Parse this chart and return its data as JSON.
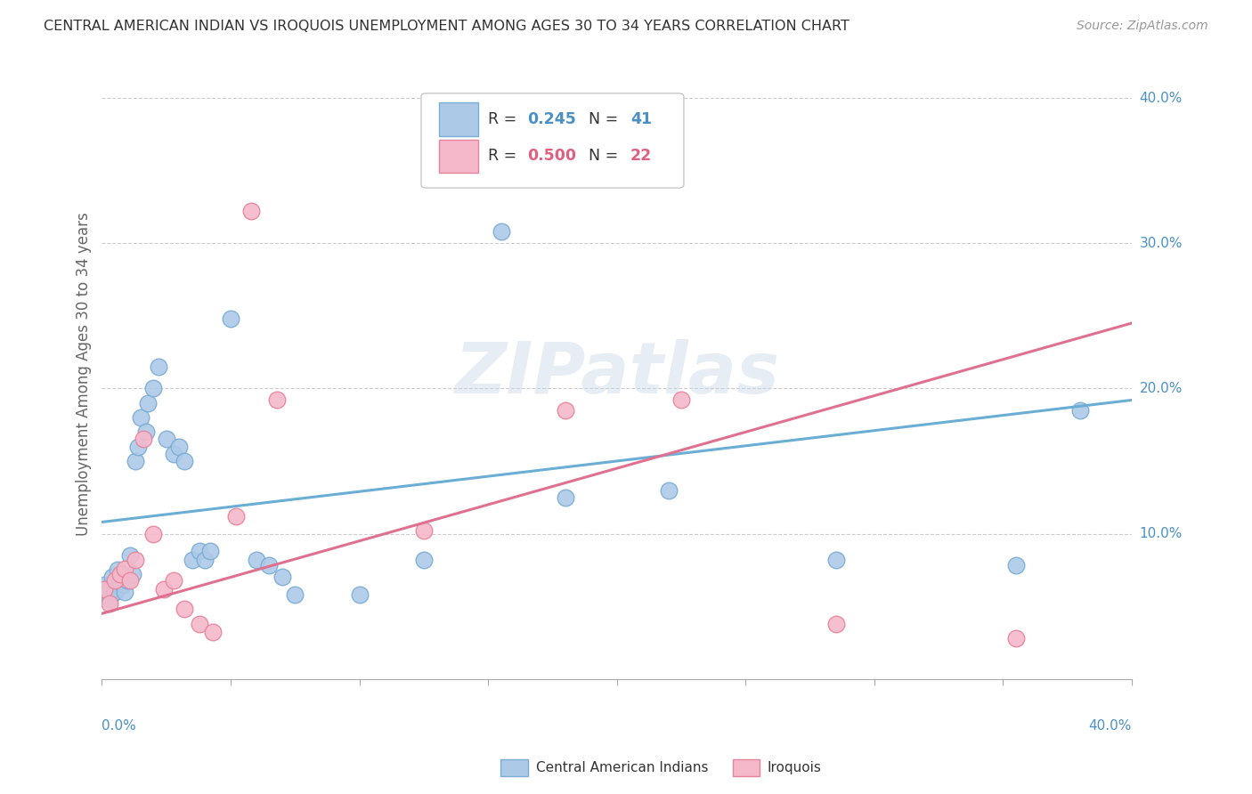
{
  "title": "CENTRAL AMERICAN INDIAN VS IROQUOIS UNEMPLOYMENT AMONG AGES 30 TO 34 YEARS CORRELATION CHART",
  "source": "Source: ZipAtlas.com",
  "ylabel": "Unemployment Among Ages 30 to 34 years",
  "legend_label1": "Central American Indians",
  "legend_label2": "Iroquois",
  "r1": "0.245",
  "n1": "41",
  "r2": "0.500",
  "n2": "22",
  "watermark": "ZIPatlas",
  "color_blue": "#adc9e8",
  "color_pink": "#f5b8cb",
  "color_blue_dark": "#7aadd4",
  "color_pink_dark": "#e8849a",
  "color_blue_text": "#4a90c4",
  "color_pink_text": "#e06080",
  "color_line_blue": "#6aaed6",
  "color_line_pink": "#e07090",
  "background": "#ffffff",
  "xlim": [
    0.0,
    0.4
  ],
  "ylim": [
    0.0,
    0.42
  ],
  "ytick_values": [
    0.1,
    0.2,
    0.3,
    0.4
  ],
  "ytick_labels": [
    "10.0%",
    "20.0%",
    "30.0%",
    "40.0%"
  ],
  "blue_line_start_y": 0.108,
  "blue_line_end_y": 0.192,
  "pink_line_start_y": 0.045,
  "pink_line_end_y": 0.245,
  "blue_scatter_x": [
    0.001,
    0.002,
    0.003,
    0.004,
    0.005,
    0.006,
    0.007,
    0.008,
    0.008,
    0.009,
    0.01,
    0.011,
    0.012,
    0.013,
    0.014,
    0.015,
    0.017,
    0.018,
    0.02,
    0.022,
    0.025,
    0.028,
    0.03,
    0.032,
    0.035,
    0.038,
    0.04,
    0.042,
    0.05,
    0.06,
    0.065,
    0.07,
    0.075,
    0.1,
    0.125,
    0.155,
    0.18,
    0.22,
    0.285,
    0.355,
    0.38
  ],
  "blue_scatter_y": [
    0.065,
    0.06,
    0.055,
    0.07,
    0.06,
    0.075,
    0.068,
    0.072,
    0.065,
    0.06,
    0.068,
    0.085,
    0.072,
    0.15,
    0.16,
    0.18,
    0.17,
    0.19,
    0.2,
    0.215,
    0.165,
    0.155,
    0.16,
    0.15,
    0.082,
    0.088,
    0.082,
    0.088,
    0.248,
    0.082,
    0.078,
    0.07,
    0.058,
    0.058,
    0.082,
    0.308,
    0.125,
    0.13,
    0.082,
    0.078,
    0.185
  ],
  "pink_scatter_x": [
    0.001,
    0.003,
    0.005,
    0.007,
    0.009,
    0.011,
    0.013,
    0.016,
    0.02,
    0.024,
    0.028,
    0.032,
    0.038,
    0.043,
    0.052,
    0.058,
    0.068,
    0.125,
    0.18,
    0.225,
    0.285,
    0.355
  ],
  "pink_scatter_y": [
    0.062,
    0.052,
    0.068,
    0.072,
    0.076,
    0.068,
    0.082,
    0.165,
    0.1,
    0.062,
    0.068,
    0.048,
    0.038,
    0.032,
    0.112,
    0.322,
    0.192,
    0.102,
    0.185,
    0.192,
    0.038,
    0.028
  ]
}
